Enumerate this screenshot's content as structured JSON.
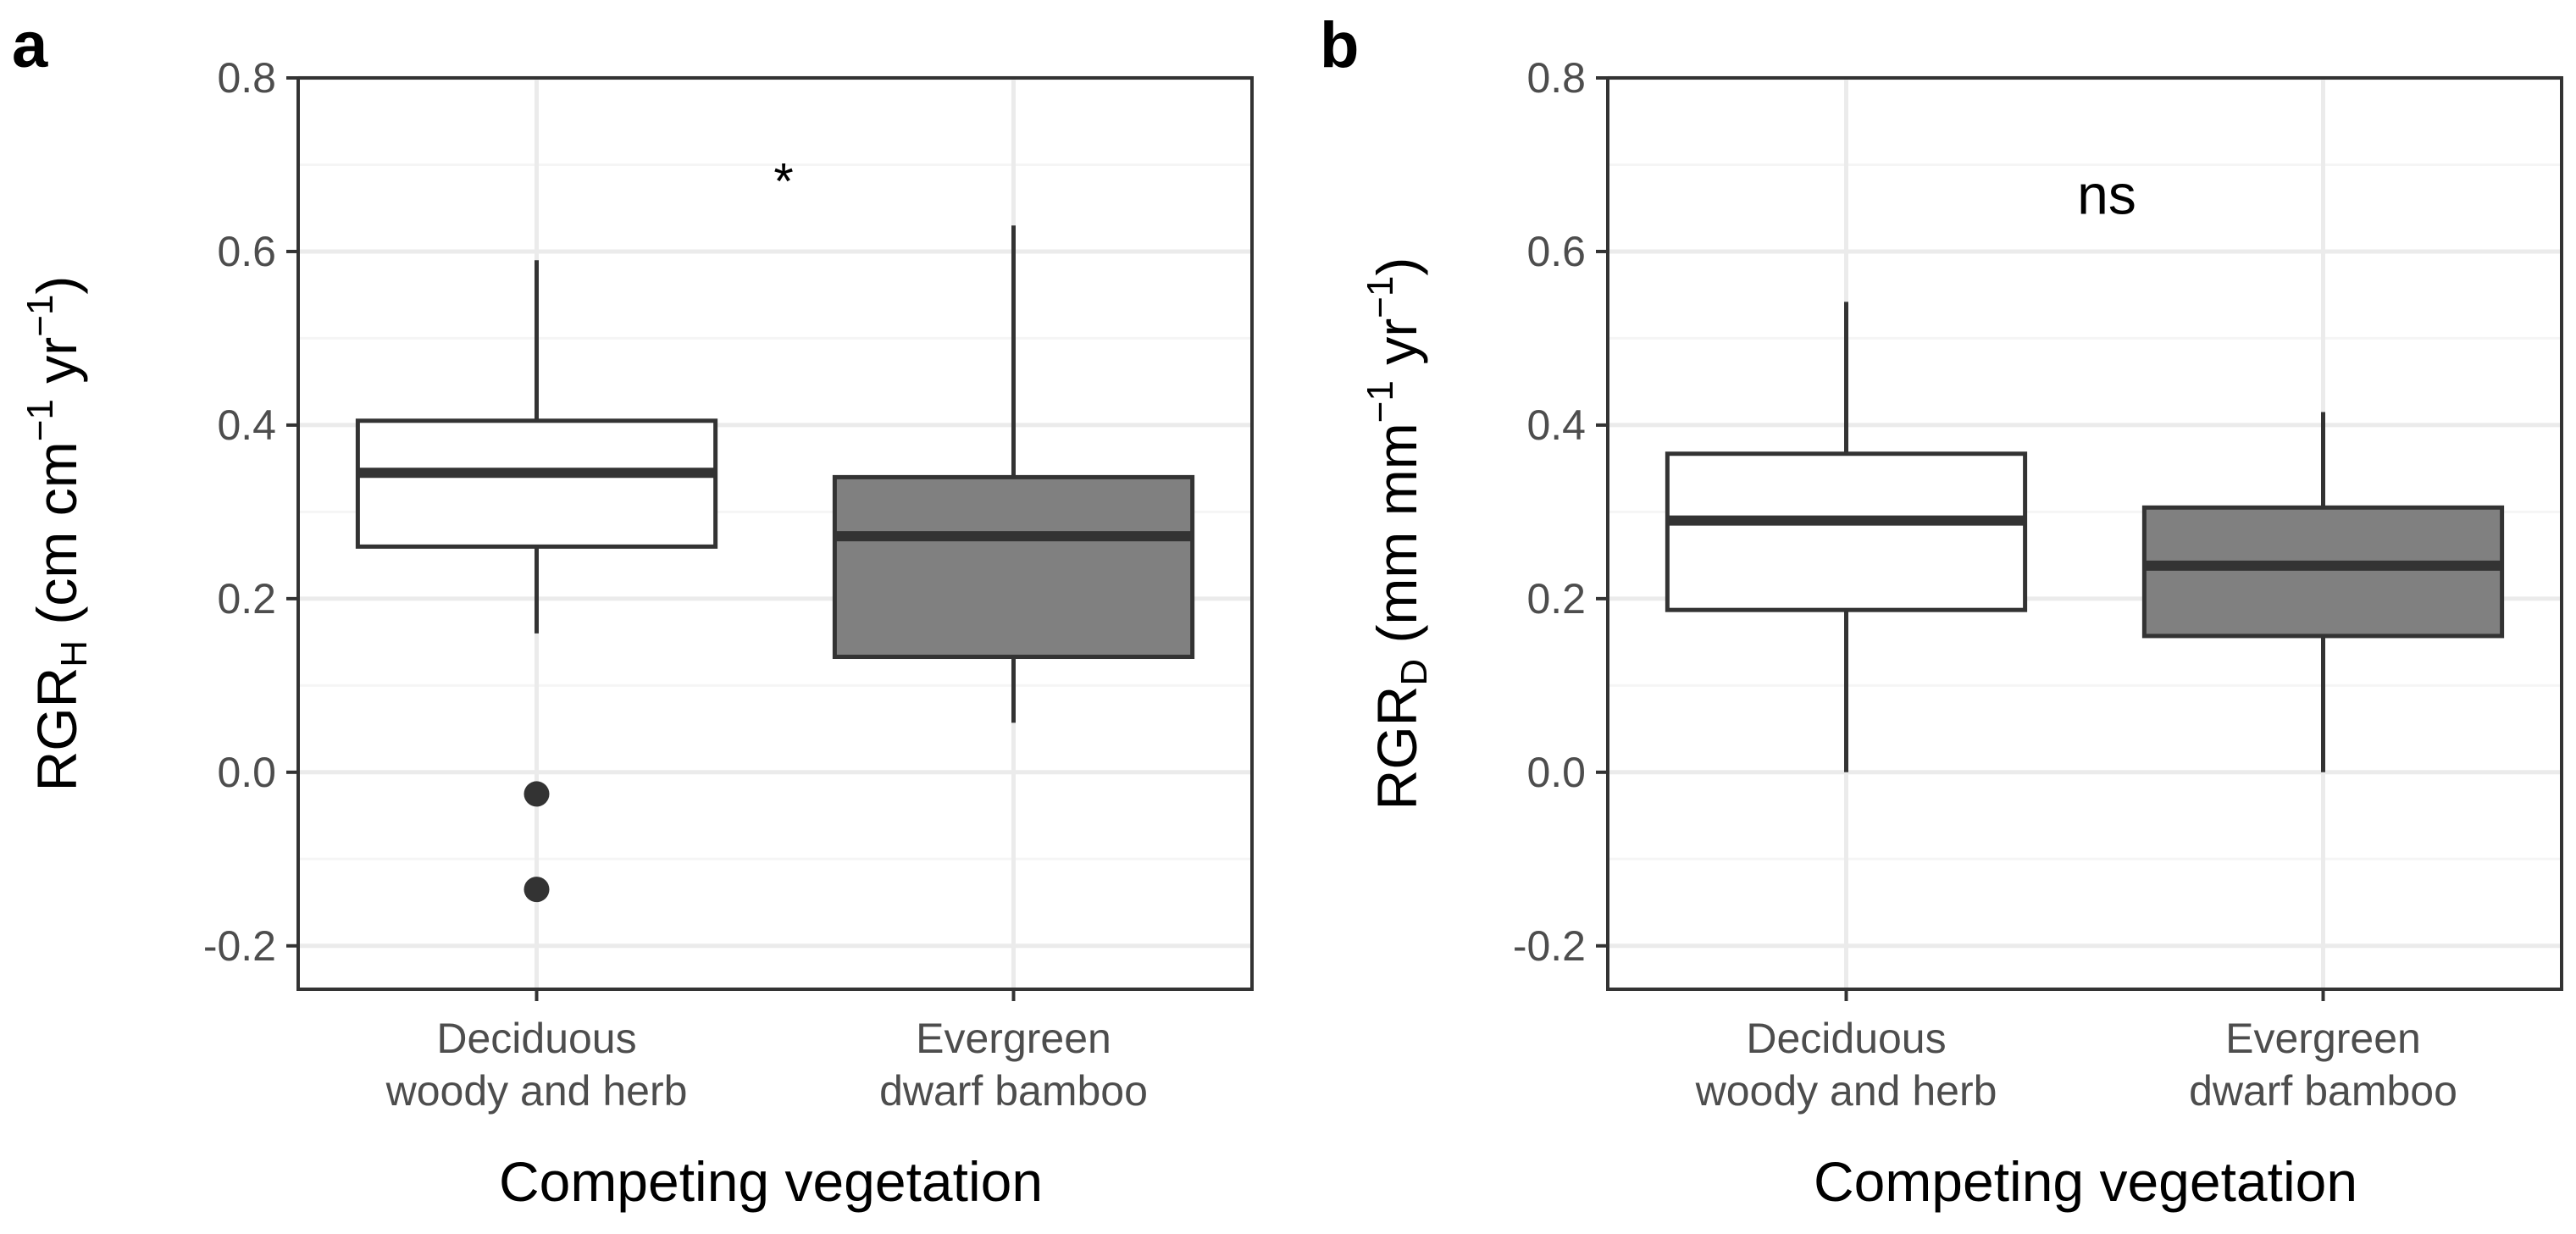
{
  "figure": {
    "panels": [
      "a",
      "b"
    ]
  },
  "chart_data": [
    {
      "panel": "a",
      "type": "boxplot",
      "xlabel": "Competing vegetation",
      "ylabel": "RGR",
      "ylabel_sub": "H",
      "ylabel_unit_parts": [
        "(cm cm",
        "−1",
        " yr",
        "−1",
        ")"
      ],
      "ylim": [
        -0.25,
        0.8
      ],
      "yticks": [
        -0.2,
        0.0,
        0.2,
        0.4,
        0.6,
        0.8
      ],
      "ytick_labels": [
        "-0.2",
        "0.0",
        "0.2",
        "0.4",
        "0.6",
        "0.8"
      ],
      "grid": true,
      "categories": [
        "Deciduous\nwoody and herb",
        "Evergreen\ndwarf bamboo"
      ],
      "boxes": [
        {
          "lower_whisker": 0.16,
          "q1": 0.26,
          "median": 0.345,
          "q3": 0.405,
          "upper_whisker": 0.59,
          "fill": "#ffffff",
          "outliers": [
            -0.025,
            -0.135
          ]
        },
        {
          "lower_whisker": 0.057,
          "q1": 0.133,
          "median": 0.272,
          "q3": 0.34,
          "upper_whisker": 0.63,
          "fill": "#808080",
          "outliers": []
        }
      ],
      "annotation": {
        "text": "*",
        "x_position": 0.5,
        "y": 0.69,
        "size": "small"
      }
    },
    {
      "panel": "b",
      "type": "boxplot",
      "xlabel": "Competing vegetation",
      "ylabel": "RGR",
      "ylabel_sub": "D",
      "ylabel_unit_parts": [
        "(mm mm",
        "−1",
        " yr",
        "−1",
        ")"
      ],
      "ylim": [
        -0.25,
        0.8
      ],
      "yticks": [
        -0.2,
        0.0,
        0.2,
        0.4,
        0.6,
        0.8
      ],
      "ytick_labels": [
        "-0.2",
        "0.0",
        "0.2",
        "0.4",
        "0.6",
        "0.8"
      ],
      "grid": true,
      "categories": [
        "Deciduous\nwoody and herb",
        "Evergreen\ndwarf bamboo"
      ],
      "boxes": [
        {
          "lower_whisker": 0.0,
          "q1": 0.187,
          "median": 0.29,
          "q3": 0.367,
          "upper_whisker": 0.542,
          "fill": "#ffffff",
          "outliers": []
        },
        {
          "lower_whisker": 0.0,
          "q1": 0.157,
          "median": 0.238,
          "q3": 0.305,
          "upper_whisker": 0.415,
          "fill": "#808080",
          "outliers": []
        }
      ],
      "annotation": {
        "text": "ns",
        "x_position": 0.5,
        "y": 0.665,
        "size": "large"
      }
    }
  ],
  "colors": {
    "box_outline": "#333333",
    "grid_major": "#ebebeb",
    "grid_minor": "#f5f5f5",
    "panel_border": "#333333",
    "tick_text": "#4d4d4d"
  }
}
